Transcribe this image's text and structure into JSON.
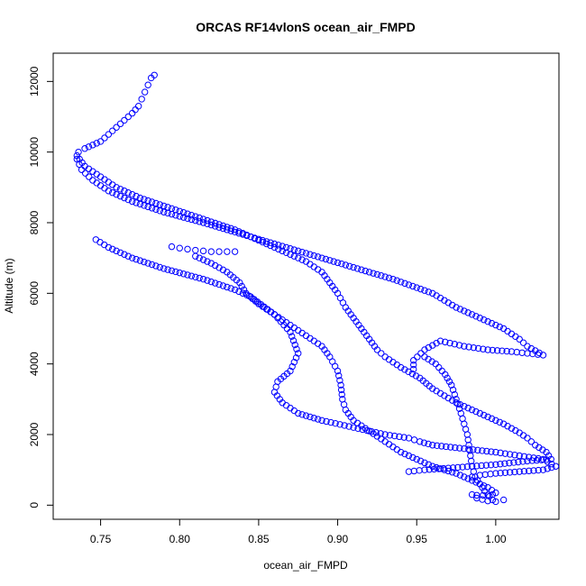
{
  "chart_data": {
    "type": "scatter",
    "title": "ORCAS RF14vlonS ocean_air_FMPD",
    "xlabel": "ocean_air_FMPD",
    "ylabel": "Altitude (m)",
    "xlim": [
      0.72,
      1.04
    ],
    "ylim": [
      -400,
      12800
    ],
    "x_ticks": [
      0.75,
      0.8,
      0.85,
      0.9,
      0.95,
      1.0
    ],
    "x_tick_labels": [
      "0.75",
      "0.80",
      "0.85",
      "0.90",
      "0.95",
      "1.00"
    ],
    "y_ticks": [
      0,
      2000,
      4000,
      6000,
      8000,
      10000,
      12000
    ],
    "y_tick_labels": [
      "0",
      "2000",
      "4000",
      "6000",
      "8000",
      "10000",
      "12000"
    ],
    "marker": "open-circle",
    "color": "#0000ff",
    "grid": false,
    "series": [
      {
        "x": [
          0.784,
          0.782,
          0.78,
          0.778,
          0.776,
          0.774,
          0.77,
          0.765,
          0.76,
          0.755,
          0.75,
          0.745,
          0.74,
          0.736,
          0.735,
          0.738,
          0.745,
          0.755,
          0.77,
          0.79,
          0.815,
          0.845,
          0.875,
          0.905,
          0.935,
          0.96,
          0.975,
          0.99,
          1.005,
          1.015,
          1.02,
          1.03,
          1.02,
          1.01,
          0.995,
          0.98,
          0.965,
          0.955,
          0.948,
          0.948
        ],
        "y": [
          12180,
          12100,
          11900,
          11700,
          11500,
          11300,
          11100,
          10900,
          10700,
          10500,
          10300,
          10200,
          10100,
          10000,
          9800,
          9500,
          9200,
          8900,
          8600,
          8300,
          8000,
          7600,
          7200,
          6800,
          6400,
          6000,
          5600,
          5300,
          5000,
          4700,
          4500,
          4250,
          4300,
          4350,
          4400,
          4500,
          4650,
          4400,
          4100,
          3850
        ]
      },
      {
        "x": [
          0.747,
          0.755,
          0.77,
          0.79,
          0.815,
          0.835,
          0.845,
          0.86,
          0.87,
          0.875,
          0.87,
          0.862,
          0.86,
          0.865,
          0.875,
          0.89,
          0.91,
          0.93,
          0.945,
          0.952,
          0.96,
          0.98,
          1.0,
          1.015,
          1.03,
          1.038,
          1.03,
          1.015,
          1.0,
          0.99,
          0.985
        ],
        "y": [
          7520,
          7300,
          7000,
          6700,
          6400,
          6100,
          5900,
          5400,
          4900,
          4300,
          3800,
          3500,
          3200,
          2900,
          2600,
          2400,
          2200,
          2000,
          1900,
          1800,
          1700,
          1600,
          1500,
          1400,
          1300,
          1100,
          1000,
          950,
          900,
          850,
          800
        ]
      },
      {
        "x": [
          0.735,
          0.74,
          0.75,
          0.76,
          0.775,
          0.795,
          0.815,
          0.835,
          0.85,
          0.865,
          0.88,
          0.89,
          0.895,
          0.9,
          0.905,
          0.91,
          0.915,
          0.92,
          0.925,
          0.93,
          0.94,
          0.952,
          0.96,
          0.975,
          0.99,
          1.005,
          1.015,
          1.02,
          1.025,
          1.032,
          1.035,
          1.02,
          1.0,
          0.985,
          0.97,
          0.955,
          0.945
        ],
        "y": [
          9900,
          9600,
          9300,
          9000,
          8700,
          8400,
          8100,
          7800,
          7500,
          7200,
          6900,
          6600,
          6300,
          6000,
          5600,
          5300,
          5000,
          4700,
          4400,
          4200,
          3900,
          3600,
          3300,
          2900,
          2600,
          2300,
          2050,
          1900,
          1700,
          1500,
          1300,
          1250,
          1150,
          1100,
          1050,
          1000,
          950
        ]
      },
      {
        "x": [
          0.795,
          0.8,
          0.805,
          0.81,
          0.815,
          0.82,
          0.825,
          0.83,
          0.835
        ],
        "y": [
          7320,
          7280,
          7250,
          7220,
          7200,
          7180,
          7180,
          7180,
          7180
        ]
      },
      {
        "x": [
          0.81,
          0.82,
          0.83,
          0.838,
          0.842,
          0.85,
          0.86,
          0.87,
          0.88,
          0.89,
          0.895,
          0.9,
          0.902,
          0.903,
          0.905,
          0.91,
          0.92,
          0.93,
          0.94,
          0.95,
          0.96,
          0.975,
          0.985,
          0.995,
          1.0,
          0.998,
          0.992,
          0.988,
          0.985,
          0.988,
          0.995,
          1.0,
          1.005
        ],
        "y": [
          7050,
          6850,
          6600,
          6300,
          6000,
          5700,
          5400,
          5100,
          4800,
          4500,
          4200,
          3800,
          3400,
          3000,
          2700,
          2400,
          2100,
          1800,
          1500,
          1300,
          1100,
          900,
          700,
          500,
          350,
          300,
          280,
          280,
          300,
          200,
          120,
          100,
          150
        ]
      },
      {
        "x": [
          0.955,
          0.962,
          0.968,
          0.972,
          0.975,
          0.978,
          0.98,
          0.982,
          0.983,
          0.984,
          0.985,
          0.987,
          0.99,
          0.993,
          0.996,
          0.998
        ],
        "y": [
          4200,
          4000,
          3700,
          3400,
          3000,
          2600,
          2300,
          2000,
          1700,
          1400,
          1100,
          800,
          600,
          400,
          250,
          150
        ]
      }
    ]
  }
}
